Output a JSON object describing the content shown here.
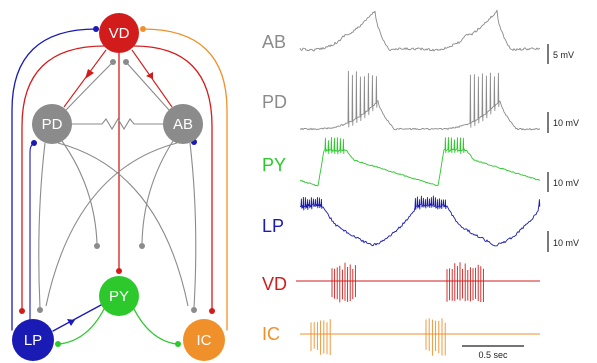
{
  "circuit": {
    "neurons": {
      "vd": {
        "label": "VD",
        "color": "#d21c1c"
      },
      "pd": {
        "label": "PD",
        "color": "#8b8b8b"
      },
      "ab": {
        "label": "AB",
        "color": "#8b8b8b"
      },
      "py": {
        "label": "PY",
        "color": "#2cc82c"
      },
      "lp": {
        "label": "LP",
        "color": "#1a1ab4"
      },
      "ic": {
        "label": "IC",
        "color": "#f0902a"
      }
    }
  },
  "recordings": {
    "traces": [
      {
        "label": "AB",
        "scale": "5 mV"
      },
      {
        "label": "PD",
        "scale": "10 mV"
      },
      {
        "label": "PY",
        "scale": "10 mV"
      },
      {
        "label": "LP",
        "scale": "10 mV"
      },
      {
        "label": "VD"
      },
      {
        "label": "IC"
      }
    ],
    "time_scale": "0.5 sec"
  }
}
